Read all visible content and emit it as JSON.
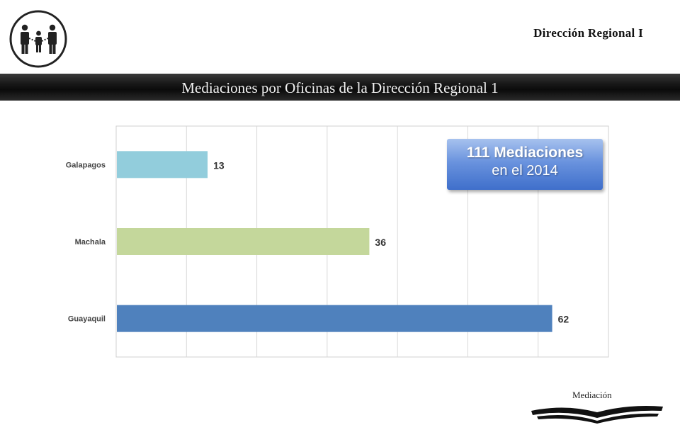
{
  "header": {
    "region_title": "Dirección Regional I",
    "banner_title": "Mediaciones por Oficinas de la Dirección Regional 1"
  },
  "callout": {
    "bold_text": "111 Mediaciones",
    "sub_text": "en el 2014"
  },
  "footer": {
    "label": "Mediación"
  },
  "chart_data": {
    "type": "bar",
    "orientation": "horizontal",
    "categories": [
      "Galapagos",
      "Machala",
      "Guayaquil"
    ],
    "values": [
      13,
      36,
      62
    ],
    "colors": [
      "#92cddc",
      "#c4d79b",
      "#4f81bd"
    ],
    "xlim": [
      0,
      70
    ],
    "grid": true,
    "title": "",
    "xlabel": "",
    "ylabel": ""
  }
}
